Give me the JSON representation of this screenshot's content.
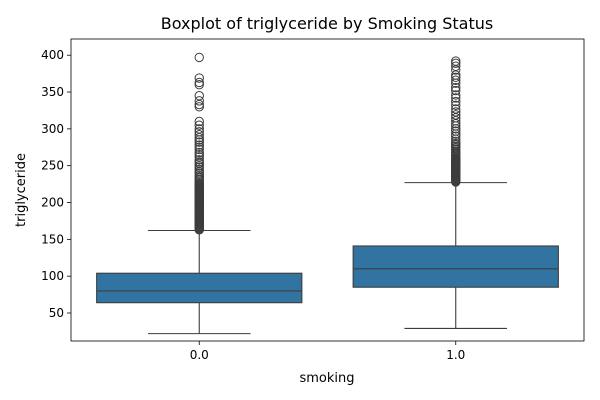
{
  "chart_data": {
    "type": "box",
    "title": "Boxplot of triglyceride by Smoking Status",
    "xlabel": "smoking",
    "ylabel": "triglyceride",
    "ylim": [
      12,
      422
    ],
    "yticks": [
      50,
      100,
      150,
      200,
      250,
      300,
      350,
      400
    ],
    "categories": [
      "0.0",
      "1.0"
    ],
    "grid": false,
    "legend": "none",
    "box_color": "#3274a1",
    "line_color": "#3d3d3d",
    "boxes": [
      {
        "category": "0.0",
        "whisker_low": 22,
        "q1": 64,
        "median": 80,
        "q3": 104,
        "whisker_high": 162,
        "outliers": [
          163,
          164,
          165,
          166,
          167,
          168,
          169,
          170,
          171,
          172,
          173,
          174,
          175,
          176,
          177,
          178,
          179,
          180,
          181,
          182,
          183,
          184,
          185,
          186,
          187,
          188,
          189,
          190,
          191,
          192,
          193,
          194,
          195,
          196,
          197,
          198,
          199,
          200,
          201,
          202,
          203,
          204,
          205,
          206,
          207,
          208,
          209,
          210,
          211,
          212,
          213,
          214,
          215,
          216,
          217,
          218,
          219,
          220,
          221,
          222,
          223,
          224,
          225,
          227,
          229,
          231,
          233,
          235,
          237,
          240,
          242,
          245,
          248,
          250,
          253,
          255,
          258,
          262,
          265,
          268,
          272,
          275,
          278,
          282,
          285,
          288,
          292,
          296,
          300,
          305,
          310,
          330,
          333,
          338,
          345,
          360,
          363,
          369,
          397
        ]
      },
      {
        "category": "1.0",
        "whisker_low": 29,
        "q1": 85,
        "median": 110,
        "q3": 141,
        "whisker_high": 227,
        "outliers": [
          228,
          229,
          230,
          231,
          232,
          233,
          234,
          235,
          236,
          237,
          238,
          239,
          240,
          241,
          242,
          243,
          244,
          245,
          246,
          247,
          248,
          249,
          250,
          251,
          252,
          253,
          254,
          255,
          256,
          257,
          258,
          259,
          260,
          262,
          264,
          266,
          268,
          270,
          272,
          274,
          276,
          278,
          280,
          283,
          286,
          290,
          293,
          297,
          300,
          304,
          307,
          311,
          315,
          319,
          323,
          327,
          332,
          337,
          342,
          346,
          352,
          356,
          362,
          366,
          370,
          373,
          380,
          385,
          389,
          392
        ]
      }
    ]
  }
}
